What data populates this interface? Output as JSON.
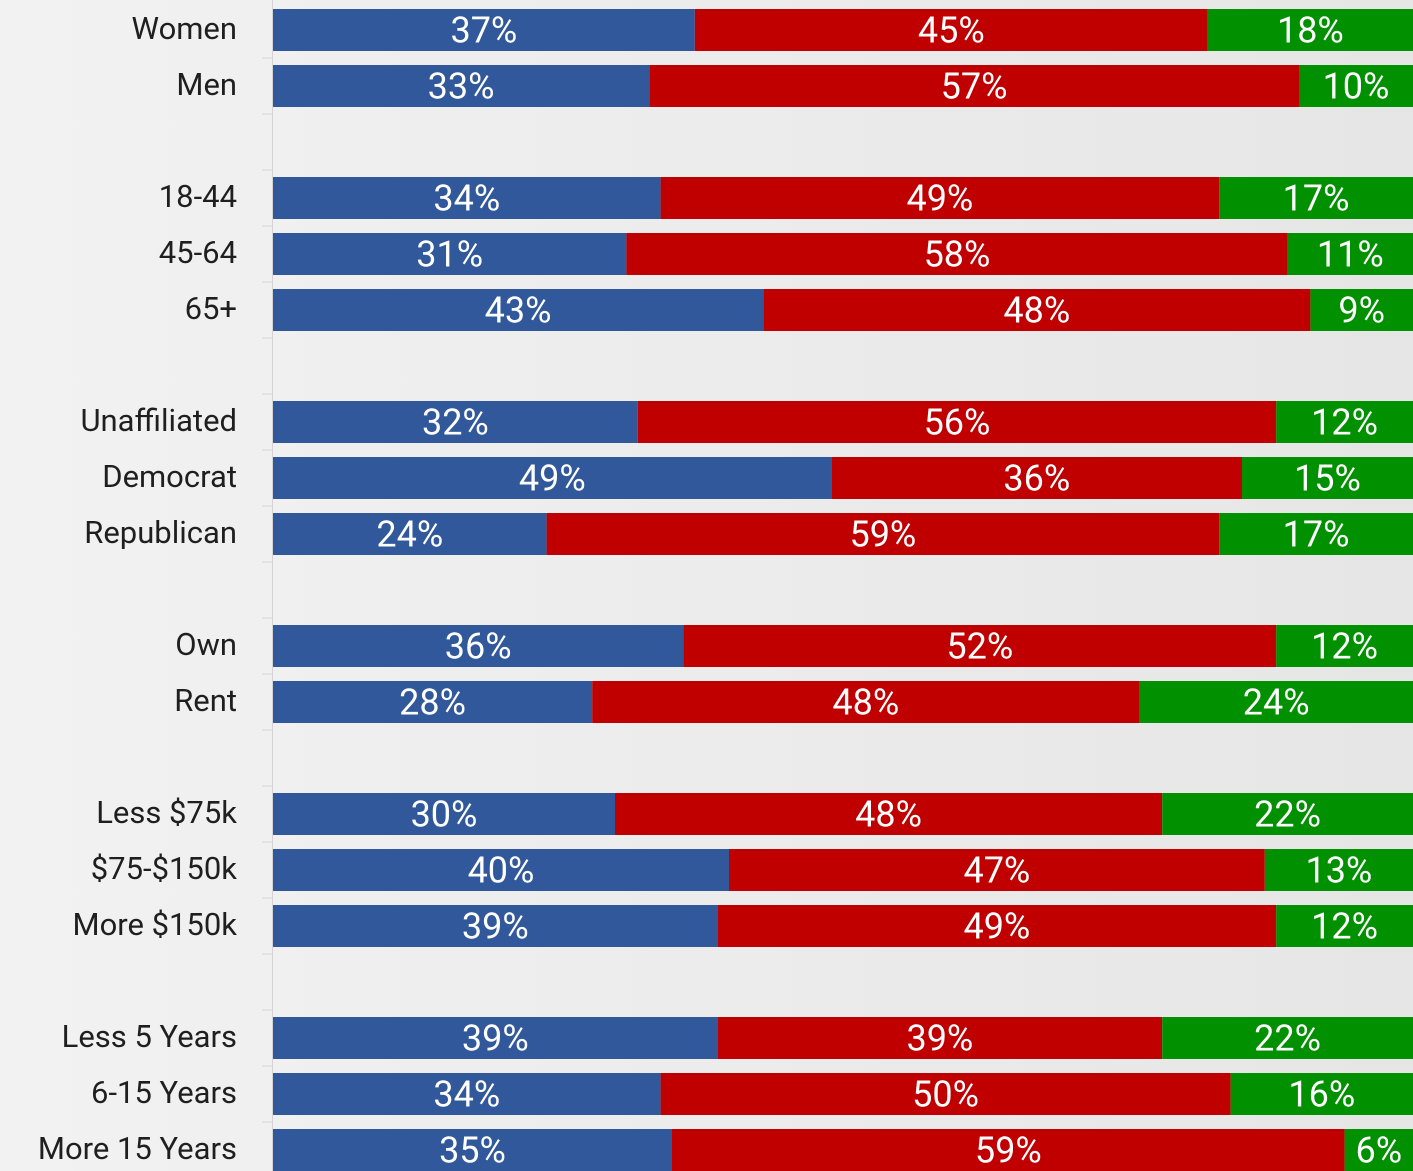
{
  "chart_data": {
    "type": "stacked_bar_horizontal",
    "categories": [
      "Women",
      "Men",
      null,
      "18-44",
      "45-64",
      "65+",
      null,
      "Unaffiliated",
      "Democrat",
      "Republican",
      null,
      "Own",
      "Rent",
      null,
      "Less $75k",
      "$75-$150k",
      "More $150k",
      null,
      "Less 5 Years",
      "6-15 Years",
      "More 15 Years"
    ],
    "xlim": [
      0,
      100
    ],
    "series": [
      {
        "color": "#30589a",
        "values": [
          37,
          33,
          null,
          34,
          31,
          43,
          null,
          32,
          49,
          24,
          null,
          36,
          28,
          null,
          30,
          40,
          39,
          null,
          39,
          34,
          35
        ],
        "value_labels": [
          "37%",
          "33%",
          null,
          "34%",
          "31%",
          "43%",
          null,
          "32%",
          "49%",
          "24%",
          null,
          "36%",
          "28%",
          null,
          "30%",
          "40%",
          "39%",
          null,
          "39%",
          "34%",
          "35%"
        ]
      },
      {
        "color": "#c00000",
        "values": [
          45,
          57,
          null,
          49,
          58,
          48,
          null,
          56,
          36,
          59,
          null,
          52,
          48,
          null,
          48,
          47,
          49,
          null,
          39,
          50,
          59
        ],
        "value_labels": [
          "45%",
          "57%",
          null,
          "49%",
          "58%",
          "48%",
          null,
          "56%",
          "36%",
          "59%",
          null,
          "52%",
          "48%",
          null,
          "48%",
          "47%",
          "49%",
          null,
          "39%",
          "50%",
          "59%"
        ]
      },
      {
        "color": "#009000",
        "values": [
          18,
          10,
          null,
          17,
          11,
          9,
          null,
          12,
          15,
          17,
          null,
          12,
          24,
          null,
          22,
          13,
          12,
          null,
          22,
          16,
          6
        ],
        "value_labels": [
          "18%",
          "10%",
          null,
          "17%",
          "11%",
          "9%",
          null,
          "12%",
          "15%",
          "17%",
          null,
          "12%",
          "24%",
          null,
          "22%",
          "13%",
          "12%",
          null,
          "22%",
          "16%",
          "6%"
        ]
      }
    ]
  }
}
